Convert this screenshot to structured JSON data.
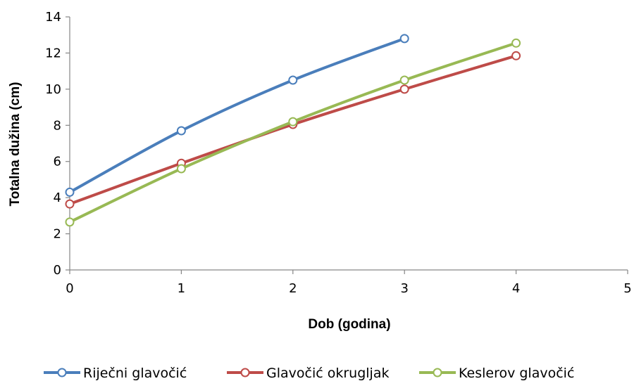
{
  "chart_data": {
    "type": "line",
    "title": "",
    "xlabel": "Dob (godina)",
    "ylabel": "Totalna dužina (cm)",
    "xlim": [
      0,
      5
    ],
    "ylim": [
      0,
      14
    ],
    "xticks": [
      "0",
      "1",
      "2",
      "3",
      "4",
      "5"
    ],
    "yticks": [
      "0",
      "2",
      "4",
      "6",
      "8",
      "10",
      "12",
      "14"
    ],
    "grid": false,
    "legend_position": "bottom",
    "series": [
      {
        "name": "Riječni glavočić",
        "color": "#4a7ebb",
        "x": [
          0,
          1,
          2,
          3
        ],
        "y": [
          4.3,
          7.7,
          10.5,
          12.8
        ]
      },
      {
        "name": "Glavočić okrugljak",
        "color": "#be4b48",
        "x": [
          0,
          1,
          2,
          3,
          4
        ],
        "y": [
          3.65,
          5.9,
          8.05,
          10.0,
          11.85
        ]
      },
      {
        "name": "Keslerov glavočić",
        "color": "#98b954",
        "x": [
          0,
          1,
          2,
          3,
          4
        ],
        "y": [
          2.65,
          5.6,
          8.2,
          10.5,
          12.55
        ]
      }
    ]
  }
}
